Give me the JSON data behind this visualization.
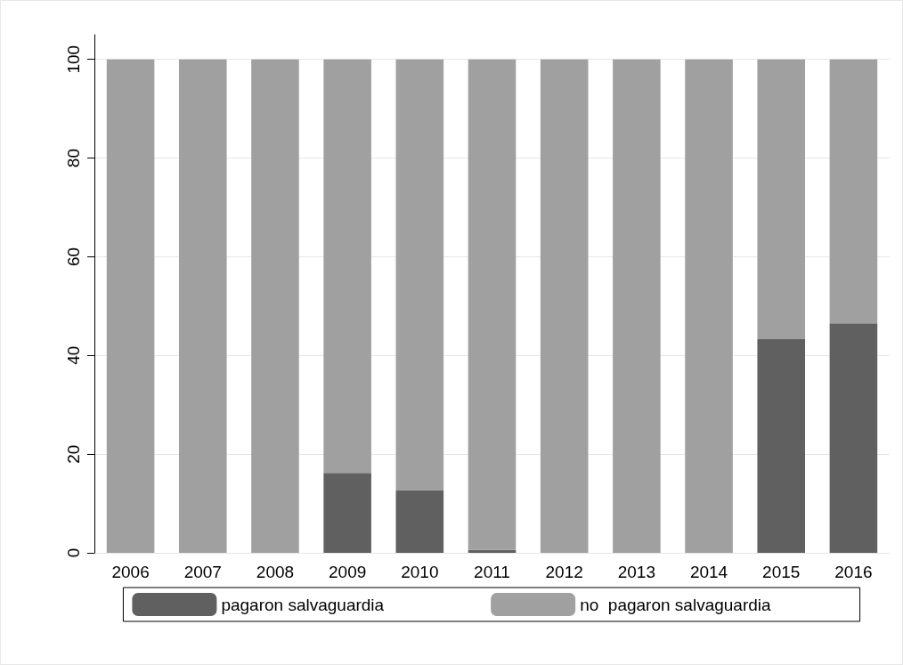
{
  "chart_data": {
    "type": "bar",
    "stacked": true,
    "categories": [
      "2006",
      "2007",
      "2008",
      "2009",
      "2010",
      "2011",
      "2012",
      "2013",
      "2014",
      "2015",
      "2016"
    ],
    "series": [
      {
        "name": "pagaron salvaguardia",
        "color": "#606060",
        "values": [
          0,
          0,
          0,
          16.2,
          12.7,
          0.6,
          0,
          0,
          0,
          43.3,
          46.5
        ]
      },
      {
        "name": "no  pagaron salvaguardia",
        "color": "#a0a0a0",
        "values": [
          100,
          100,
          100,
          83.8,
          87.3,
          99.4,
          100,
          100,
          100,
          56.7,
          53.5
        ]
      }
    ],
    "ylim": [
      0,
      105
    ],
    "yticks": [
      0,
      20,
      40,
      60,
      80,
      100
    ],
    "grid": "y",
    "legend": "bottom"
  }
}
